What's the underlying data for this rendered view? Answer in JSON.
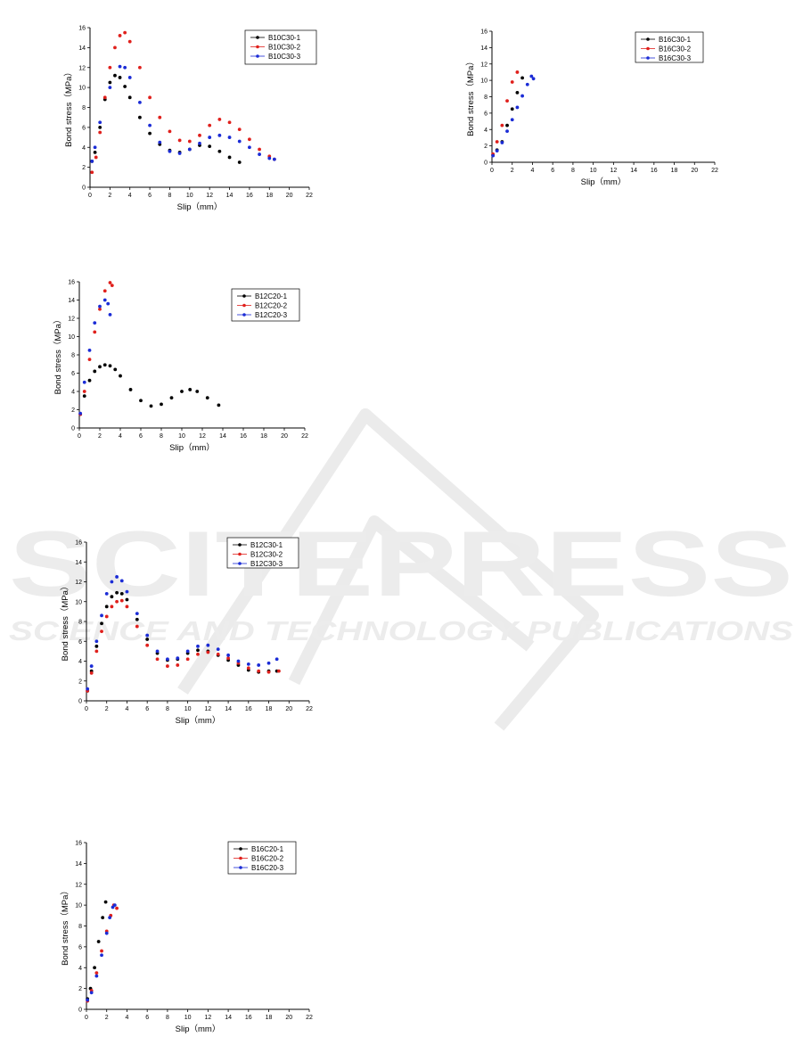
{
  "watermark": {
    "brand": "SCITEPRESS",
    "tagline": "SCIENCE AND TECHNOLOGY PUBLICATIONS"
  },
  "chart_data": [
    {
      "type": "scatter",
      "xlabel": "Slip（mm）",
      "ylabel": "Bond stress（MPa）",
      "xlim": [
        0,
        22
      ],
      "ylim": [
        0,
        16
      ],
      "xticks": [
        0,
        2,
        4,
        6,
        8,
        10,
        12,
        14,
        16,
        18,
        20,
        22
      ],
      "yticks": [
        0,
        2,
        4,
        6,
        8,
        10,
        12,
        14,
        16
      ],
      "legend_position": "top-right",
      "series": [
        {
          "name": "B10C30-1",
          "color": "#000000",
          "points": [
            [
              0.2,
              2.6
            ],
            [
              0.5,
              3.5
            ],
            [
              1,
              6
            ],
            [
              1.5,
              8.8
            ],
            [
              2,
              10.5
            ],
            [
              2.5,
              11.2
            ],
            [
              3,
              11
            ],
            [
              3.5,
              10.1
            ],
            [
              4,
              9
            ],
            [
              5,
              7
            ],
            [
              6,
              5.4
            ],
            [
              7,
              4.3
            ],
            [
              8,
              3.7
            ],
            [
              9,
              3.5
            ],
            [
              10,
              3.8
            ],
            [
              11,
              4.2
            ],
            [
              12,
              4.1
            ],
            [
              13,
              3.6
            ],
            [
              14,
              3
            ],
            [
              15,
              2.5
            ]
          ]
        },
        {
          "name": "B10C30-2",
          "color": "#e0201c",
          "points": [
            [
              0.2,
              1.5
            ],
            [
              0.6,
              3
            ],
            [
              1,
              5.5
            ],
            [
              1.5,
              9
            ],
            [
              2,
              12
            ],
            [
              2.5,
              14
            ],
            [
              3,
              15.2
            ],
            [
              3.5,
              15.5
            ],
            [
              4,
              14.6
            ],
            [
              5,
              12
            ],
            [
              6,
              9
            ],
            [
              7,
              7
            ],
            [
              8,
              5.6
            ],
            [
              9,
              4.7
            ],
            [
              10,
              4.6
            ],
            [
              11,
              5.2
            ],
            [
              12,
              6.2
            ],
            [
              13,
              6.8
            ],
            [
              14,
              6.5
            ],
            [
              15,
              5.8
            ],
            [
              16,
              4.8
            ],
            [
              17,
              3.8
            ],
            [
              18,
              3.1
            ],
            [
              18.5,
              2.8
            ]
          ]
        },
        {
          "name": "B10C30-3",
          "color": "#1b2cd6",
          "points": [
            [
              0.2,
              2.6
            ],
            [
              0.5,
              4
            ],
            [
              1,
              6.5
            ],
            [
              2,
              10
            ],
            [
              3,
              12.1
            ],
            [
              3.5,
              12
            ],
            [
              4,
              11
            ],
            [
              5,
              8.5
            ],
            [
              6,
              6.2
            ],
            [
              7,
              4.5
            ],
            [
              8,
              3.6
            ],
            [
              9,
              3.4
            ],
            [
              10,
              3.8
            ],
            [
              11,
              4.4
            ],
            [
              12,
              5
            ],
            [
              13,
              5.2
            ],
            [
              14,
              5
            ],
            [
              15,
              4.6
            ],
            [
              16,
              4
            ],
            [
              17,
              3.3
            ],
            [
              18,
              2.9
            ],
            [
              18.5,
              2.8
            ]
          ]
        }
      ]
    },
    {
      "type": "scatter",
      "xlabel": "Slip（mm）",
      "ylabel": "Bond stress（MPa）",
      "xlim": [
        0,
        22
      ],
      "ylim": [
        0,
        16
      ],
      "xticks": [
        0,
        2,
        4,
        6,
        8,
        10,
        12,
        14,
        16,
        18,
        20,
        22
      ],
      "yticks": [
        0,
        2,
        4,
        6,
        8,
        10,
        12,
        14,
        16
      ],
      "legend_position": "top-right",
      "series": [
        {
          "name": "B16C30-1",
          "color": "#000000",
          "points": [
            [
              0.1,
              0.9
            ],
            [
              0.5,
              1.5
            ],
            [
              1,
              2.5
            ],
            [
              1.5,
              4.5
            ],
            [
              2,
              6.5
            ],
            [
              2.5,
              8.5
            ],
            [
              3,
              10.3
            ]
          ]
        },
        {
          "name": "B16C30-2",
          "color": "#e0201c",
          "points": [
            [
              0.1,
              1
            ],
            [
              0.5,
              2.5
            ],
            [
              1,
              4.5
            ],
            [
              1.5,
              7.5
            ],
            [
              2,
              9.8
            ],
            [
              2.5,
              11
            ]
          ]
        },
        {
          "name": "B16C30-3",
          "color": "#1b2cd6",
          "points": [
            [
              0.1,
              0.8
            ],
            [
              0.5,
              1.4
            ],
            [
              1,
              2.4
            ],
            [
              1.5,
              3.8
            ],
            [
              2,
              5.2
            ],
            [
              2.5,
              6.7
            ],
            [
              3,
              8.1
            ],
            [
              3.5,
              9.5
            ],
            [
              3.9,
              10.5
            ],
            [
              4.1,
              10.2
            ]
          ]
        }
      ]
    },
    {
      "type": "scatter",
      "xlabel": "Slip（mm）",
      "ylabel": "Bond stress（MPa）",
      "xlim": [
        0,
        22
      ],
      "ylim": [
        0,
        16
      ],
      "xticks": [
        0,
        2,
        4,
        6,
        8,
        10,
        12,
        14,
        16,
        18,
        20,
        22
      ],
      "yticks": [
        0,
        2,
        4,
        6,
        8,
        10,
        12,
        14,
        16
      ],
      "legend_position": "top-right",
      "series": [
        {
          "name": "B12C20-1",
          "color": "#000000",
          "points": [
            [
              0.1,
              1.5
            ],
            [
              0.5,
              3.5
            ],
            [
              1,
              5.2
            ],
            [
              1.5,
              6.2
            ],
            [
              2,
              6.7
            ],
            [
              2.5,
              6.9
            ],
            [
              3,
              6.8
            ],
            [
              3.5,
              6.4
            ],
            [
              4,
              5.7
            ],
            [
              5,
              4.2
            ],
            [
              6,
              3
            ],
            [
              7,
              2.4
            ],
            [
              8,
              2.6
            ],
            [
              9,
              3.3
            ],
            [
              10,
              4
            ],
            [
              10.8,
              4.2
            ],
            [
              11.5,
              4
            ],
            [
              12.5,
              3.3
            ],
            [
              13.6,
              2.5
            ]
          ]
        },
        {
          "name": "B12C20-2",
          "color": "#e0201c",
          "points": [
            [
              0.1,
              1.5
            ],
            [
              0.5,
              4
            ],
            [
              1,
              7.5
            ],
            [
              1.5,
              10.5
            ],
            [
              2,
              13
            ],
            [
              2.5,
              15
            ],
            [
              3,
              15.9
            ],
            [
              3.2,
              15.6
            ]
          ]
        },
        {
          "name": "B12C20-3",
          "color": "#1b2cd6",
          "points": [
            [
              0.1,
              1.6
            ],
            [
              0.5,
              5
            ],
            [
              1,
              8.5
            ],
            [
              1.5,
              11.5
            ],
            [
              2,
              13.3
            ],
            [
              2.5,
              14
            ],
            [
              2.8,
              13.6
            ],
            [
              3,
              12.4
            ]
          ]
        }
      ]
    },
    {
      "type": "scatter",
      "xlabel": "Slip（mm）",
      "ylabel": "Bond stress（MPa）",
      "xlim": [
        0,
        22
      ],
      "ylim": [
        0,
        16
      ],
      "xticks": [
        0,
        2,
        4,
        6,
        8,
        10,
        12,
        14,
        16,
        18,
        20,
        22
      ],
      "yticks": [
        0,
        2,
        4,
        6,
        8,
        10,
        12,
        14,
        16
      ],
      "legend_position": "top-right",
      "series": [
        {
          "name": "B12C30-1",
          "color": "#000000",
          "points": [
            [
              0.1,
              1
            ],
            [
              0.5,
              3
            ],
            [
              1,
              5.5
            ],
            [
              1.5,
              7.8
            ],
            [
              2,
              9.5
            ],
            [
              2.5,
              10.5
            ],
            [
              3,
              10.9
            ],
            [
              3.5,
              10.8
            ],
            [
              4,
              10.2
            ],
            [
              5,
              8.2
            ],
            [
              6,
              6.2
            ],
            [
              7,
              4.8
            ],
            [
              8,
              4.1
            ],
            [
              9,
              4.2
            ],
            [
              10,
              4.8
            ],
            [
              11,
              5.1
            ],
            [
              12,
              5
            ],
            [
              13,
              4.6
            ],
            [
              14,
              4.1
            ],
            [
              15,
              3.6
            ],
            [
              16,
              3.1
            ],
            [
              17,
              2.9
            ],
            [
              18,
              3
            ],
            [
              18.8,
              3
            ]
          ]
        },
        {
          "name": "B12C30-2",
          "color": "#e0201c",
          "points": [
            [
              0.1,
              1
            ],
            [
              0.5,
              2.8
            ],
            [
              1,
              5
            ],
            [
              1.5,
              7
            ],
            [
              2,
              8.5
            ],
            [
              2.5,
              9.5
            ],
            [
              3,
              10
            ],
            [
              3.5,
              10.1
            ],
            [
              4,
              9.5
            ],
            [
              5,
              7.5
            ],
            [
              6,
              5.6
            ],
            [
              7,
              4.2
            ],
            [
              8,
              3.5
            ],
            [
              9,
              3.6
            ],
            [
              10,
              4.2
            ],
            [
              11,
              4.7
            ],
            [
              12,
              4.9
            ],
            [
              13,
              4.7
            ],
            [
              14,
              4.3
            ],
            [
              15,
              3.8
            ],
            [
              16,
              3.3
            ],
            [
              17,
              3
            ],
            [
              18,
              2.9
            ],
            [
              19,
              3
            ]
          ]
        },
        {
          "name": "B12C30-3",
          "color": "#1b2cd6",
          "points": [
            [
              0.1,
              1.2
            ],
            [
              0.5,
              3.5
            ],
            [
              1,
              6
            ],
            [
              1.5,
              8.6
            ],
            [
              2,
              10.8
            ],
            [
              2.5,
              12
            ],
            [
              3,
              12.5
            ],
            [
              3.5,
              12.1
            ],
            [
              4,
              11
            ],
            [
              5,
              8.8
            ],
            [
              6,
              6.6
            ],
            [
              7,
              5
            ],
            [
              8,
              4.2
            ],
            [
              9,
              4.3
            ],
            [
              10,
              5
            ],
            [
              11,
              5.5
            ],
            [
              12,
              5.6
            ],
            [
              13,
              5.2
            ],
            [
              14,
              4.6
            ],
            [
              15,
              4
            ],
            [
              16,
              3.7
            ],
            [
              17,
              3.6
            ],
            [
              18,
              3.8
            ],
            [
              18.8,
              4.2
            ]
          ]
        }
      ]
    },
    {
      "type": "scatter",
      "xlabel": "Slip（mm）",
      "ylabel": "Bond stress（MPa）",
      "xlim": [
        0,
        22
      ],
      "ylim": [
        0,
        16
      ],
      "xticks": [
        0,
        2,
        4,
        6,
        8,
        10,
        12,
        14,
        16,
        18,
        20,
        22
      ],
      "yticks": [
        0,
        2,
        4,
        6,
        8,
        10,
        12,
        14,
        16
      ],
      "legend_position": "top-right",
      "series": [
        {
          "name": "B16C20-1",
          "color": "#000000",
          "points": [
            [
              0.1,
              1
            ],
            [
              0.4,
              2
            ],
            [
              0.8,
              4
            ],
            [
              1.2,
              6.5
            ],
            [
              1.6,
              8.8
            ],
            [
              1.9,
              10.3
            ]
          ]
        },
        {
          "name": "B16C20-2",
          "color": "#e0201c",
          "points": [
            [
              0.1,
              0.8
            ],
            [
              0.5,
              1.8
            ],
            [
              1,
              3.5
            ],
            [
              1.5,
              5.6
            ],
            [
              2,
              7.5
            ],
            [
              2.4,
              9
            ],
            [
              2.7,
              10
            ],
            [
              3,
              9.7
            ]
          ]
        },
        {
          "name": "B16C20-3",
          "color": "#1b2cd6",
          "points": [
            [
              0.1,
              0.9
            ],
            [
              0.5,
              1.6
            ],
            [
              1,
              3.2
            ],
            [
              1.5,
              5.2
            ],
            [
              2,
              7.3
            ],
            [
              2.3,
              8.8
            ],
            [
              2.6,
              9.8
            ],
            [
              2.8,
              10
            ]
          ]
        }
      ]
    }
  ]
}
